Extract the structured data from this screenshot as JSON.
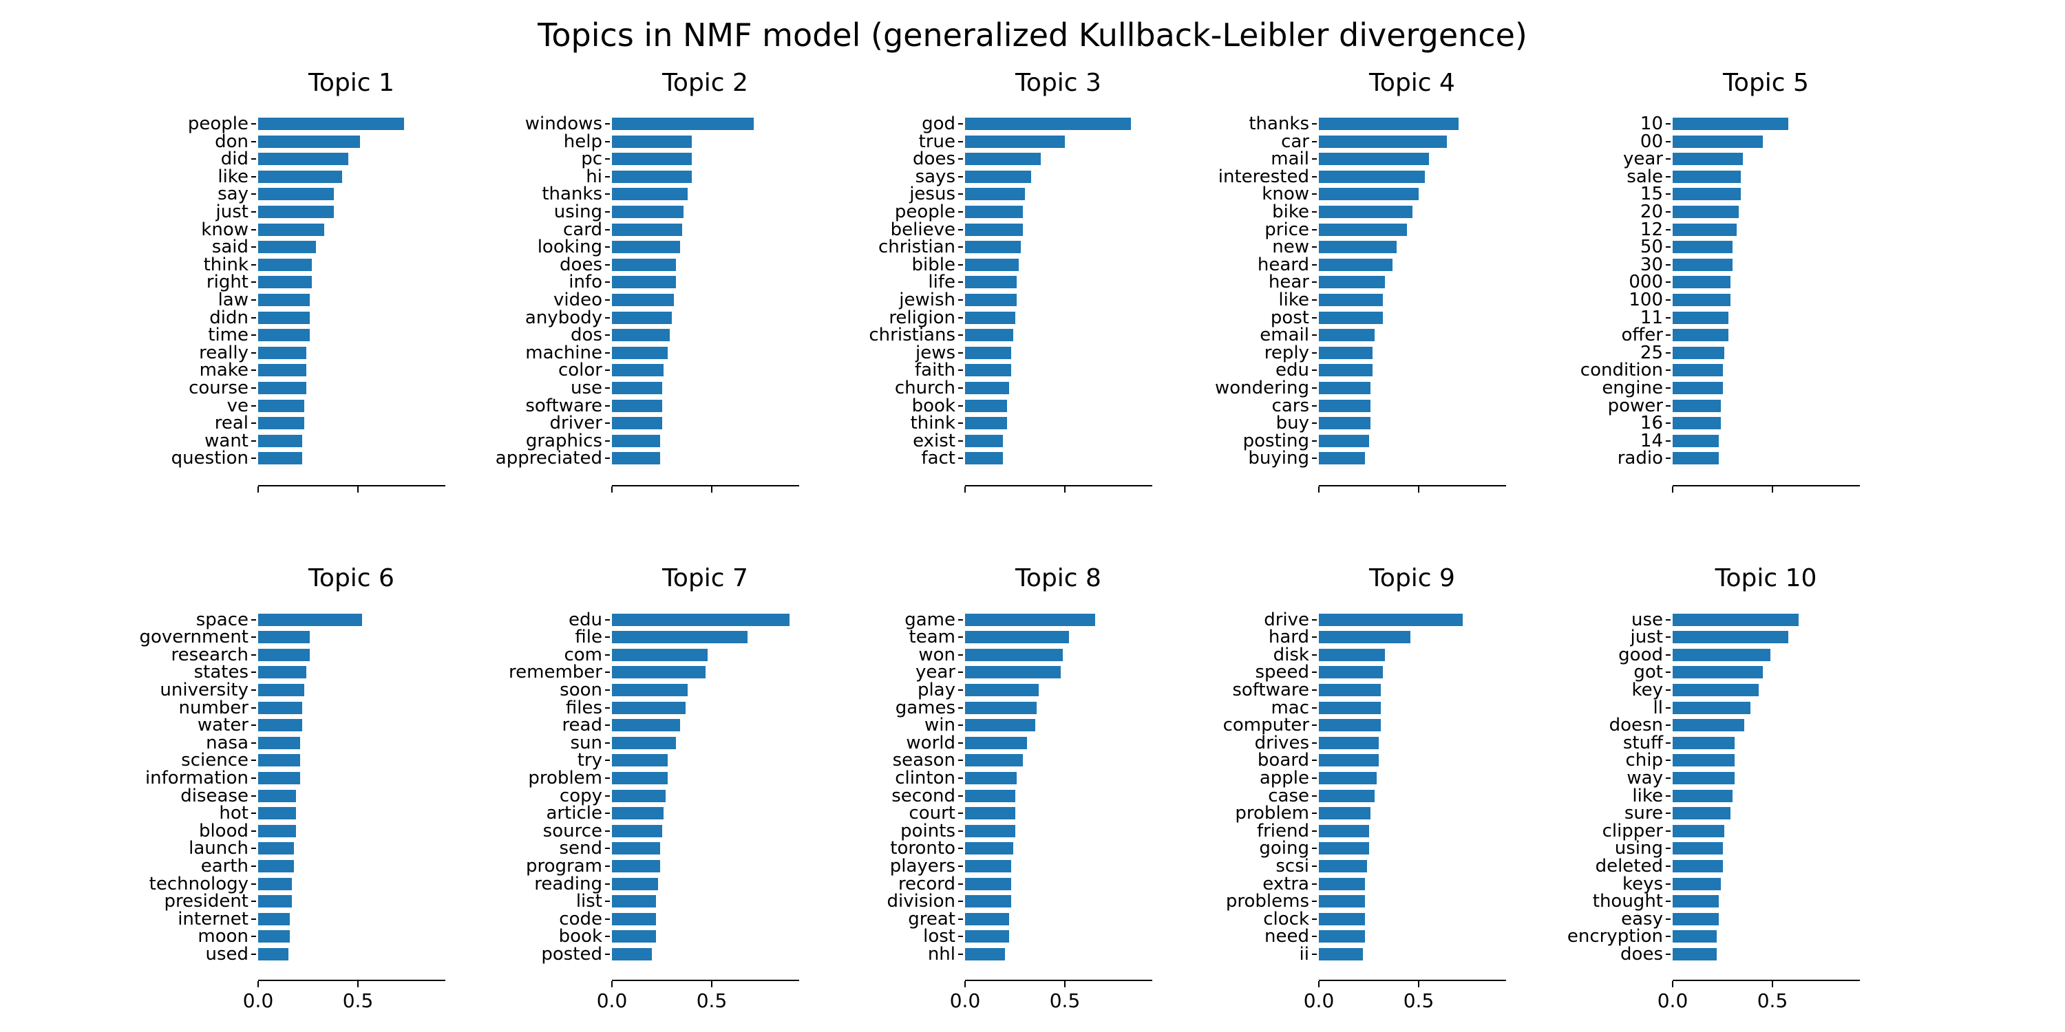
{
  "title": "Topics in NMF model (generalized Kullback-Leibler divergence)",
  "colors": {
    "bar": "#1f77b4",
    "axis": "#000000",
    "text": "#000000"
  },
  "chart_data": [
    {
      "type": "bar",
      "orientation": "horizontal",
      "title": "Topic 1",
      "categories": [
        "people",
        "don",
        "did",
        "like",
        "say",
        "just",
        "know",
        "said",
        "think",
        "right",
        "law",
        "didn",
        "time",
        "really",
        "make",
        "course",
        "ve",
        "real",
        "want",
        "question"
      ],
      "values": [
        0.73,
        0.51,
        0.45,
        0.42,
        0.38,
        0.38,
        0.33,
        0.29,
        0.27,
        0.27,
        0.26,
        0.26,
        0.26,
        0.24,
        0.24,
        0.24,
        0.23,
        0.23,
        0.22,
        0.22
      ],
      "xlim": [
        0,
        0.935
      ],
      "xticks": [
        0.0,
        0.5
      ],
      "xtick_labels": [
        "0.0",
        "0.5"
      ],
      "show_xtick_labels": false,
      "grid": false
    },
    {
      "type": "bar",
      "orientation": "horizontal",
      "title": "Topic 2",
      "categories": [
        "windows",
        "help",
        "pc",
        "hi",
        "thanks",
        "using",
        "card",
        "looking",
        "does",
        "info",
        "video",
        "anybody",
        "dos",
        "machine",
        "color",
        "use",
        "software",
        "driver",
        "graphics",
        "appreciated"
      ],
      "values": [
        0.71,
        0.4,
        0.4,
        0.4,
        0.38,
        0.36,
        0.35,
        0.34,
        0.32,
        0.32,
        0.31,
        0.3,
        0.29,
        0.28,
        0.26,
        0.25,
        0.25,
        0.25,
        0.24,
        0.24
      ],
      "xlim": [
        0,
        0.935
      ],
      "xticks": [
        0.0,
        0.5
      ],
      "xtick_labels": [
        "0.0",
        "0.5"
      ],
      "show_xtick_labels": false,
      "grid": false
    },
    {
      "type": "bar",
      "orientation": "horizontal",
      "title": "Topic 3",
      "categories": [
        "god",
        "true",
        "does",
        "says",
        "jesus",
        "people",
        "believe",
        "christian",
        "bible",
        "life",
        "jewish",
        "religion",
        "christians",
        "jews",
        "faith",
        "church",
        "book",
        "think",
        "exist",
        "fact"
      ],
      "values": [
        0.83,
        0.5,
        0.38,
        0.33,
        0.3,
        0.29,
        0.29,
        0.28,
        0.27,
        0.26,
        0.26,
        0.25,
        0.24,
        0.23,
        0.23,
        0.22,
        0.21,
        0.21,
        0.19,
        0.19
      ],
      "xlim": [
        0,
        0.935
      ],
      "xticks": [
        0.0,
        0.5
      ],
      "xtick_labels": [
        "0.0",
        "0.5"
      ],
      "show_xtick_labels": false,
      "grid": false
    },
    {
      "type": "bar",
      "orientation": "horizontal",
      "title": "Topic 4",
      "categories": [
        "thanks",
        "car",
        "mail",
        "interested",
        "know",
        "bike",
        "price",
        "new",
        "heard",
        "hear",
        "like",
        "post",
        "email",
        "reply",
        "edu",
        "wondering",
        "cars",
        "buy",
        "posting",
        "buying"
      ],
      "values": [
        0.7,
        0.64,
        0.55,
        0.53,
        0.5,
        0.47,
        0.44,
        0.39,
        0.37,
        0.33,
        0.32,
        0.32,
        0.28,
        0.27,
        0.27,
        0.26,
        0.26,
        0.26,
        0.25,
        0.23
      ],
      "xlim": [
        0,
        0.935
      ],
      "xticks": [
        0.0,
        0.5
      ],
      "xtick_labels": [
        "0.0",
        "0.5"
      ],
      "show_xtick_labels": false,
      "grid": false
    },
    {
      "type": "bar",
      "orientation": "horizontal",
      "title": "Topic 5",
      "categories": [
        "10",
        "00",
        "year",
        "sale",
        "15",
        "20",
        "12",
        "50",
        "30",
        "000",
        "100",
        "11",
        "offer",
        "25",
        "condition",
        "engine",
        "power",
        "16",
        "14",
        "radio"
      ],
      "values": [
        0.58,
        0.45,
        0.35,
        0.34,
        0.34,
        0.33,
        0.32,
        0.3,
        0.3,
        0.29,
        0.29,
        0.28,
        0.28,
        0.26,
        0.25,
        0.25,
        0.24,
        0.24,
        0.23,
        0.23
      ],
      "xlim": [
        0,
        0.935
      ],
      "xticks": [
        0.0,
        0.5
      ],
      "xtick_labels": [
        "0.0",
        "0.5"
      ],
      "show_xtick_labels": false,
      "grid": false
    },
    {
      "type": "bar",
      "orientation": "horizontal",
      "title": "Topic 6",
      "categories": [
        "space",
        "government",
        "research",
        "states",
        "university",
        "number",
        "water",
        "nasa",
        "science",
        "information",
        "disease",
        "hot",
        "blood",
        "launch",
        "earth",
        "technology",
        "president",
        "internet",
        "moon",
        "used"
      ],
      "values": [
        0.52,
        0.26,
        0.26,
        0.24,
        0.23,
        0.22,
        0.22,
        0.21,
        0.21,
        0.21,
        0.19,
        0.19,
        0.19,
        0.18,
        0.18,
        0.17,
        0.17,
        0.16,
        0.16,
        0.15
      ],
      "xlim": [
        0,
        0.935
      ],
      "xticks": [
        0.0,
        0.5
      ],
      "xtick_labels": [
        "0.0",
        "0.5"
      ],
      "show_xtick_labels": true,
      "grid": false
    },
    {
      "type": "bar",
      "orientation": "horizontal",
      "title": "Topic 7",
      "categories": [
        "edu",
        "file",
        "com",
        "remember",
        "soon",
        "files",
        "read",
        "sun",
        "try",
        "problem",
        "copy",
        "article",
        "source",
        "send",
        "program",
        "reading",
        "list",
        "code",
        "book",
        "posted"
      ],
      "values": [
        0.89,
        0.68,
        0.48,
        0.47,
        0.38,
        0.37,
        0.34,
        0.32,
        0.28,
        0.28,
        0.27,
        0.26,
        0.25,
        0.24,
        0.24,
        0.23,
        0.22,
        0.22,
        0.22,
        0.2
      ],
      "xlim": [
        0,
        0.935
      ],
      "xticks": [
        0.0,
        0.5
      ],
      "xtick_labels": [
        "0.0",
        "0.5"
      ],
      "show_xtick_labels": true,
      "grid": false
    },
    {
      "type": "bar",
      "orientation": "horizontal",
      "title": "Topic 8",
      "categories": [
        "game",
        "team",
        "won",
        "year",
        "play",
        "games",
        "win",
        "world",
        "season",
        "clinton",
        "second",
        "court",
        "points",
        "toronto",
        "players",
        "record",
        "division",
        "great",
        "lost",
        "nhl"
      ],
      "values": [
        0.65,
        0.52,
        0.49,
        0.48,
        0.37,
        0.36,
        0.35,
        0.31,
        0.29,
        0.26,
        0.25,
        0.25,
        0.25,
        0.24,
        0.23,
        0.23,
        0.23,
        0.22,
        0.22,
        0.2
      ],
      "xlim": [
        0,
        0.935
      ],
      "xticks": [
        0.0,
        0.5
      ],
      "xtick_labels": [
        "0.0",
        "0.5"
      ],
      "show_xtick_labels": true,
      "grid": false
    },
    {
      "type": "bar",
      "orientation": "horizontal",
      "title": "Topic 9",
      "categories": [
        "drive",
        "hard",
        "disk",
        "speed",
        "software",
        "mac",
        "computer",
        "drives",
        "board",
        "apple",
        "case",
        "problem",
        "friend",
        "going",
        "scsi",
        "extra",
        "problems",
        "clock",
        "need",
        "ii"
      ],
      "values": [
        0.72,
        0.46,
        0.33,
        0.32,
        0.31,
        0.31,
        0.31,
        0.3,
        0.3,
        0.29,
        0.28,
        0.26,
        0.25,
        0.25,
        0.24,
        0.23,
        0.23,
        0.23,
        0.23,
        0.22
      ],
      "xlim": [
        0,
        0.935
      ],
      "xticks": [
        0.0,
        0.5
      ],
      "xtick_labels": [
        "0.0",
        "0.5"
      ],
      "show_xtick_labels": true,
      "grid": false
    },
    {
      "type": "bar",
      "orientation": "horizontal",
      "title": "Topic 10",
      "categories": [
        "use",
        "just",
        "good",
        "got",
        "key",
        "ll",
        "doesn",
        "stuff",
        "chip",
        "way",
        "like",
        "sure",
        "clipper",
        "using",
        "deleted",
        "keys",
        "thought",
        "easy",
        "encryption",
        "does"
      ],
      "values": [
        0.63,
        0.58,
        0.49,
        0.45,
        0.43,
        0.39,
        0.36,
        0.31,
        0.31,
        0.31,
        0.3,
        0.29,
        0.26,
        0.25,
        0.25,
        0.24,
        0.23,
        0.23,
        0.22,
        0.22
      ],
      "xlim": [
        0,
        0.935
      ],
      "xticks": [
        0.0,
        0.5
      ],
      "xtick_labels": [
        "0.0",
        "0.5"
      ],
      "show_xtick_labels": true,
      "grid": false
    }
  ]
}
